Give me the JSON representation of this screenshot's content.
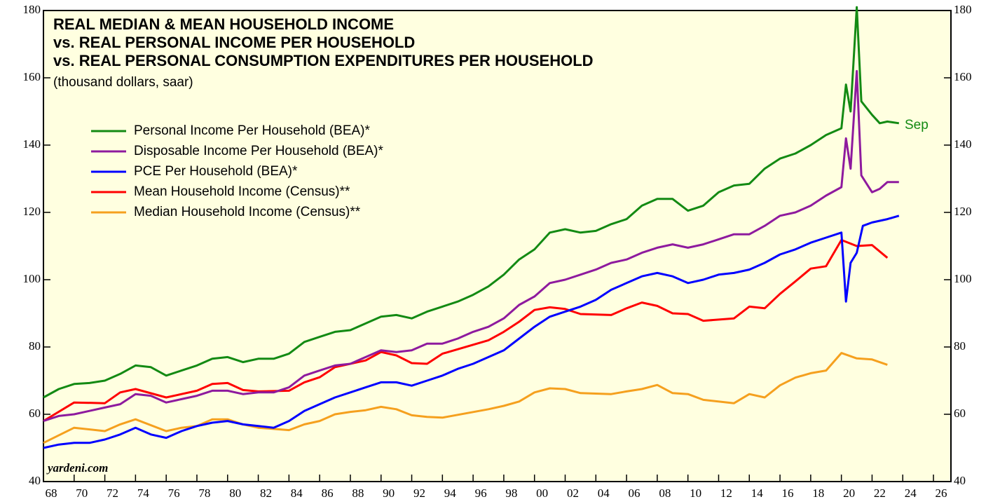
{
  "chart_data": {
    "type": "line",
    "title": [
      "REAL MEDIAN & MEAN HOUSEHOLD INCOME",
      "vs. REAL PERSONAL INCOME  PER HOUSEHOLD",
      "vs. REAL PERSONAL CONSUMPTION EXPENDITURES PER HOUSEHOLD"
    ],
    "subtitle": "(thousand dollars, saar)",
    "annotations": [
      "Sep",
      "yardeni.com"
    ],
    "xlim": [
      1968,
      2027.14
    ],
    "xticks": [
      {
        "value": 1968,
        "label": "68"
      },
      {
        "value": 1970,
        "label": "70"
      },
      {
        "value": 1972,
        "label": "72"
      },
      {
        "value": 1974,
        "label": "74"
      },
      {
        "value": 1976,
        "label": "76"
      },
      {
        "value": 1978,
        "label": "78"
      },
      {
        "value": 1980,
        "label": "80"
      },
      {
        "value": 1982,
        "label": "82"
      },
      {
        "value": 1984,
        "label": "84"
      },
      {
        "value": 1986,
        "label": "86"
      },
      {
        "value": 1988,
        "label": "88"
      },
      {
        "value": 1990,
        "label": "90"
      },
      {
        "value": 1992,
        "label": "92"
      },
      {
        "value": 1994,
        "label": "94"
      },
      {
        "value": 1996,
        "label": "96"
      },
      {
        "value": 1998,
        "label": "98"
      },
      {
        "value": 2000,
        "label": "00"
      },
      {
        "value": 2002,
        "label": "02"
      },
      {
        "value": 2004,
        "label": "04"
      },
      {
        "value": 2006,
        "label": "06"
      },
      {
        "value": 2008,
        "label": "08"
      },
      {
        "value": 2010,
        "label": "10"
      },
      {
        "value": 2012,
        "label": "12"
      },
      {
        "value": 2014,
        "label": "14"
      },
      {
        "value": 2016,
        "label": "16"
      },
      {
        "value": 2018,
        "label": "18"
      },
      {
        "value": 2020,
        "label": "20"
      },
      {
        "value": 2022,
        "label": "22"
      },
      {
        "value": 2024,
        "label": "24"
      },
      {
        "value": 2026,
        "label": "26"
      }
    ],
    "ylim": [
      40,
      180
    ],
    "yticks": [
      40,
      60,
      80,
      100,
      120,
      140,
      160,
      180
    ],
    "y2lim": [
      40,
      180
    ],
    "y2ticks": [
      40,
      60,
      80,
      100,
      120,
      140,
      160,
      180
    ],
    "background": "#ffffe0",
    "series": [
      {
        "name": "Personal Income Per Household (BEA)*",
        "color": "#138a13",
        "x": [
          1968,
          1969,
          1970,
          1971,
          1972,
          1973,
          1974,
          1975,
          1976,
          1977,
          1978,
          1979,
          1980,
          1981,
          1982,
          1983,
          1984,
          1985,
          1986,
          1987,
          1988,
          1989,
          1990,
          1991,
          1992,
          1993,
          1994,
          1995,
          1996,
          1997,
          1998,
          1999,
          2000,
          2001,
          2002,
          2003,
          2004,
          2005,
          2006,
          2007,
          2008,
          2009,
          2010,
          2011,
          2012,
          2013,
          2014,
          2015,
          2016,
          2017,
          2018,
          2019,
          2020,
          2020.3,
          2020.6,
          2021.0,
          2021.3,
          2022,
          2022.5,
          2023,
          2023.75
        ],
        "values": [
          65,
          67.5,
          69,
          69.3,
          70,
          72,
          74.5,
          74,
          71.5,
          73,
          74.5,
          76.5,
          77,
          75.5,
          76.5,
          76.5,
          78,
          81.5,
          83,
          84.5,
          85,
          87,
          89,
          89.5,
          88.5,
          90.5,
          92,
          93.5,
          95.5,
          98,
          101.5,
          106,
          109,
          114,
          115,
          114,
          114.5,
          116.5,
          118,
          122,
          124,
          124,
          120.5,
          122,
          126,
          128,
          128.5,
          133,
          136,
          137.5,
          140,
          143,
          145,
          158,
          150,
          181,
          153,
          149,
          146.5,
          147,
          146.5
        ]
      },
      {
        "name": "Disposable Income Per Household (BEA)*",
        "color": "#8e1a9e",
        "x": [
          1968,
          1969,
          1970,
          1971,
          1972,
          1973,
          1974,
          1975,
          1976,
          1977,
          1978,
          1979,
          1980,
          1981,
          1982,
          1983,
          1984,
          1985,
          1986,
          1987,
          1988,
          1989,
          1990,
          1991,
          1992,
          1993,
          1994,
          1995,
          1996,
          1997,
          1998,
          1999,
          2000,
          2001,
          2002,
          2003,
          2004,
          2005,
          2006,
          2007,
          2008,
          2009,
          2010,
          2011,
          2012,
          2013,
          2014,
          2015,
          2016,
          2017,
          2018,
          2019,
          2020,
          2020.3,
          2020.6,
          2021.0,
          2021.3,
          2022,
          2022.5,
          2023,
          2023.75
        ],
        "values": [
          58,
          59.5,
          60,
          61,
          62,
          63,
          66,
          65.5,
          63.5,
          64.5,
          65.5,
          67,
          67,
          66,
          66.5,
          66.5,
          68,
          71.5,
          73,
          74.5,
          75,
          77,
          79,
          78.5,
          79,
          81,
          81,
          82.5,
          84.5,
          86,
          88.5,
          92.5,
          95,
          99,
          100,
          101.5,
          103,
          105,
          106,
          108,
          109.5,
          110.5,
          109.5,
          110.5,
          112,
          113.5,
          113.5,
          116,
          119,
          120,
          122,
          125,
          127.5,
          142,
          133,
          162,
          131,
          126,
          127,
          129,
          129
        ]
      },
      {
        "name": "PCE Per Household (BEA)*",
        "color": "#0000ff",
        "x": [
          1968,
          1969,
          1970,
          1971,
          1972,
          1973,
          1974,
          1975,
          1976,
          1977,
          1978,
          1979,
          1980,
          1981,
          1982,
          1983,
          1984,
          1985,
          1986,
          1987,
          1988,
          1989,
          1990,
          1991,
          1992,
          1993,
          1994,
          1995,
          1996,
          1997,
          1998,
          1999,
          2000,
          2001,
          2002,
          2003,
          2004,
          2005,
          2006,
          2007,
          2008,
          2009,
          2010,
          2011,
          2012,
          2013,
          2014,
          2015,
          2016,
          2017,
          2018,
          2019,
          2020,
          2020.3,
          2020.6,
          2021.0,
          2021.4,
          2022,
          2023,
          2023.75
        ],
        "values": [
          50,
          51,
          51.5,
          51.5,
          52.5,
          54,
          56,
          54,
          53,
          55,
          56.5,
          57.5,
          58,
          57,
          56.5,
          56,
          58,
          61,
          63,
          65,
          66.5,
          68,
          69.5,
          69.5,
          68.5,
          70,
          71.5,
          73.5,
          75,
          77,
          79,
          82.5,
          86,
          89,
          90.5,
          92,
          94,
          97,
          99,
          101,
          102,
          101,
          99,
          100,
          101.5,
          102,
          103,
          105,
          107.5,
          109,
          111,
          112.5,
          114,
          93.5,
          105,
          108,
          116,
          117,
          118,
          119
        ]
      },
      {
        "name": "Mean Household Income (Census)**",
        "color": "#ff0000",
        "x": [
          1968,
          1970,
          1972,
          1973,
          1974,
          1976,
          1977,
          1978,
          1979,
          1980,
          1981,
          1982,
          1984,
          1985,
          1986,
          1987,
          1988,
          1989,
          1990,
          1991,
          1992,
          1993,
          1994,
          1997,
          1998,
          1999,
          2000,
          2001,
          2002,
          2003,
          2005,
          2006,
          2007,
          2008,
          2009,
          2010,
          2011,
          2013,
          2014,
          2015,
          2016,
          2017,
          2018,
          2019,
          2020,
          2021,
          2022,
          2023
        ],
        "values": [
          58,
          63.5,
          63.3,
          66.5,
          67.5,
          65,
          66,
          67,
          69,
          69.3,
          67.2,
          66.8,
          67,
          69.5,
          71,
          74,
          75,
          76,
          78.5,
          77.5,
          75.2,
          75,
          78,
          82,
          84.5,
          87.5,
          91,
          91.8,
          91.3,
          89.8,
          89.5,
          91.5,
          93.2,
          92.2,
          90,
          89.8,
          87.8,
          88.5,
          92,
          91.5,
          95.8,
          99.5,
          103.3,
          104,
          111.8,
          110,
          110.3,
          106.5
        ]
      },
      {
        "name": "Median Household Income (Census)**",
        "color": "#f5a01e",
        "x": [
          1968,
          1970,
          1972,
          1973,
          1974,
          1976,
          1977,
          1978,
          1979,
          1980,
          1981,
          1982,
          1984,
          1985,
          1986,
          1987,
          1988,
          1989,
          1990,
          1991,
          1992,
          1993,
          1994,
          1997,
          1998,
          1999,
          2000,
          2001,
          2002,
          2003,
          2005,
          2006,
          2007,
          2008,
          2009,
          2010,
          2011,
          2013,
          2014,
          2015,
          2016,
          2017,
          2018,
          2019,
          2020,
          2021,
          2022,
          2023
        ],
        "values": [
          51.5,
          56,
          55,
          57,
          58.5,
          55,
          56,
          56.5,
          58.5,
          58.5,
          57,
          56,
          55.3,
          57,
          58,
          60,
          60.7,
          61.2,
          62.2,
          61.5,
          59.7,
          59.2,
          59,
          61.5,
          62.5,
          63.8,
          66.5,
          67.7,
          67.5,
          66.3,
          66,
          66.8,
          67.5,
          68.7,
          66.3,
          66,
          64.3,
          63.3,
          66,
          65,
          68.6,
          70.9,
          72.2,
          73,
          78.2,
          76.6,
          76.3,
          74.7
        ]
      }
    ]
  }
}
